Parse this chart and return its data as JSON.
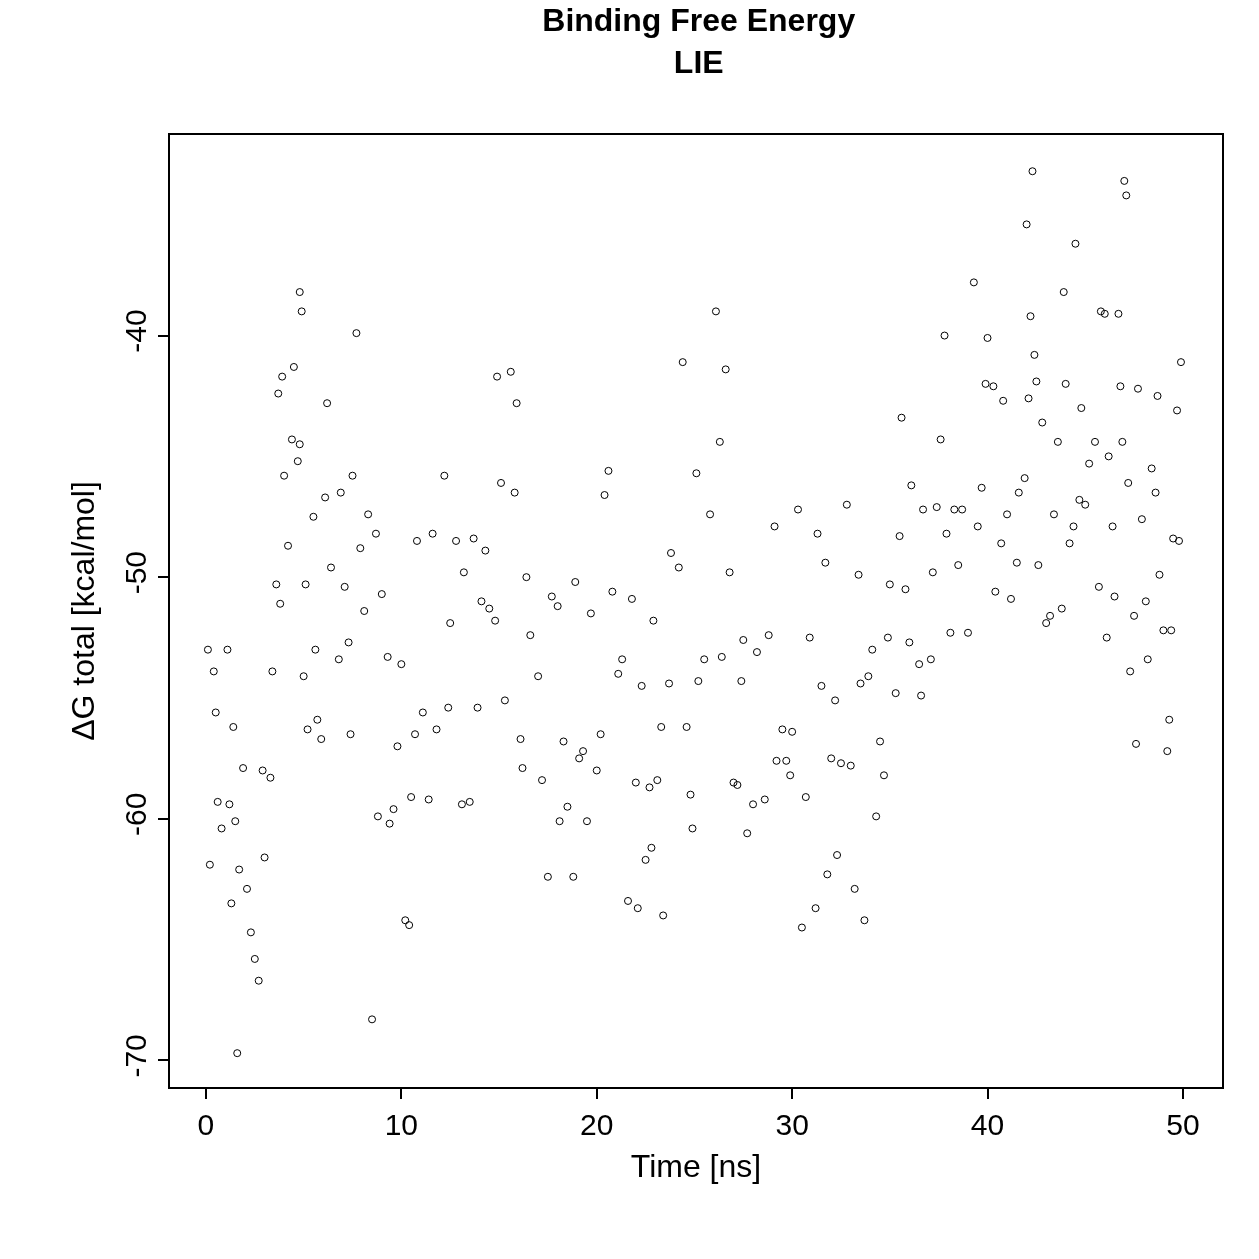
{
  "chart_data": {
    "type": "scatter",
    "title": "Binding Free Energy",
    "subtitle": "LIE",
    "xlabel": "Time [ns]",
    "ylabel": "ΔG total [kcal/mol]",
    "xlim": [
      -1.84,
      52.0
    ],
    "ylim": [
      -71.1,
      -31.7
    ],
    "xticks": [
      0,
      10,
      20,
      30,
      40,
      50
    ],
    "yticks": [
      -70,
      -60,
      -50,
      -40
    ],
    "grid": false,
    "legend": false,
    "marker": "circle",
    "series": [
      {
        "color": "#000000",
        "x": [
          0.1,
          0.2,
          0.4,
          0.5,
          0.6,
          0.8,
          1.1,
          1.2,
          1.3,
          1.4,
          1.5,
          1.6,
          1.7,
          1.9,
          2.1,
          2.3,
          2.5,
          2.7,
          2.9,
          3.0,
          3.3,
          3.4,
          3.6,
          3.7,
          3.8,
          3.9,
          4.0,
          4.2,
          4.4,
          4.5,
          4.7,
          4.8,
          4.8,
          4.9,
          5.0,
          5.1,
          5.2,
          5.5,
          5.6,
          5.7,
          5.9,
          6.1,
          6.2,
          6.4,
          6.8,
          6.9,
          7.1,
          7.3,
          7.4,
          7.5,
          7.7,
          7.9,
          8.1,
          8.3,
          8.5,
          8.7,
          8.8,
          9.0,
          9.3,
          9.4,
          9.6,
          9.8,
          10.0,
          10.2,
          10.4,
          10.5,
          10.7,
          10.8,
          11.1,
          11.4,
          11.6,
          11.8,
          12.2,
          12.4,
          12.5,
          12.8,
          13.1,
          13.2,
          13.5,
          13.7,
          13.9,
          14.1,
          14.3,
          14.5,
          14.8,
          14.9,
          15.1,
          15.3,
          15.6,
          15.8,
          15.9,
          16.1,
          16.2,
          16.4,
          16.6,
          17.0,
          17.2,
          17.5,
          17.7,
          18.0,
          18.1,
          18.3,
          18.5,
          18.8,
          18.9,
          19.1,
          19.3,
          19.5,
          19.7,
          20.0,
          20.2,
          20.4,
          20.6,
          20.8,
          21.1,
          21.3,
          21.6,
          21.8,
          22.0,
          22.1,
          22.3,
          22.5,
          22.7,
          22.8,
          22.9,
          23.1,
          23.3,
          23.4,
          23.7,
          23.8,
          24.2,
          24.4,
          24.6,
          24.8,
          24.9,
          25.1,
          25.2,
          25.5,
          25.8,
          26.1,
          26.3,
          26.4,
          26.6,
          26.8,
          27.0,
          27.2,
          27.4,
          27.5,
          27.7,
          28.0,
          28.2,
          28.6,
          28.8,
          29.1,
          29.2,
          29.5,
          29.7,
          29.9,
          30.0,
          30.3,
          30.5,
          30.7,
          30.9,
          31.2,
          31.3,
          31.5,
          31.7,
          31.8,
          32.0,
          32.2,
          32.3,
          32.5,
          32.8,
          33.0,
          33.2,
          33.4,
          33.5,
          33.7,
          33.9,
          34.1,
          34.3,
          34.5,
          34.7,
          34.9,
          35.0,
          35.3,
          35.5,
          35.6,
          35.8,
          36.0,
          36.1,
          36.5,
          36.6,
          36.7,
          37.1,
          37.2,
          37.4,
          37.6,
          37.8,
          37.9,
          38.1,
          38.3,
          38.5,
          38.7,
          39.0,
          39.3,
          39.5,
          39.7,
          39.9,
          40.0,
          40.3,
          40.4,
          40.7,
          40.8,
          41.0,
          41.2,
          41.5,
          41.6,
          41.9,
          42.0,
          42.1,
          42.2,
          42.3,
          42.4,
          42.5,
          42.6,
          42.8,
          43.0,
          43.2,
          43.4,
          43.6,
          43.8,
          43.9,
          44.0,
          44.2,
          44.4,
          44.5,
          44.7,
          44.8,
          45.0,
          45.2,
          45.5,
          45.7,
          45.8,
          46.0,
          46.1,
          46.2,
          46.4,
          46.5,
          46.7,
          46.8,
          46.9,
          47.0,
          47.1,
          47.2,
          47.3,
          47.5,
          47.6,
          47.7,
          47.9,
          48.1,
          48.2,
          48.4,
          48.6,
          48.7,
          48.8,
          49.0,
          49.2,
          49.3,
          49.4,
          49.5,
          49.7,
          49.8,
          49.9
        ],
        "values": [
          -53.0,
          -61.9,
          -53.9,
          -55.6,
          -59.3,
          -60.4,
          -53.0,
          -59.4,
          -63.5,
          -56.2,
          -60.1,
          -69.7,
          -62.1,
          -57.9,
          -62.9,
          -64.7,
          -65.8,
          -66.7,
          -58.0,
          -61.6,
          -58.3,
          -53.9,
          -50.3,
          -42.4,
          -51.1,
          -41.7,
          -45.8,
          -48.7,
          -44.3,
          -41.3,
          -45.2,
          -44.5,
          -38.2,
          -39.0,
          -54.1,
          -50.3,
          -56.3,
          -47.5,
          -53.0,
          -55.9,
          -56.7,
          -46.7,
          -42.8,
          -49.6,
          -53.4,
          -46.5,
          -50.4,
          -52.7,
          -56.5,
          -45.8,
          -39.9,
          -48.8,
          -51.4,
          -47.4,
          -68.3,
          -48.2,
          -59.9,
          -50.7,
          -53.3,
          -60.2,
          -59.6,
          -57.0,
          -53.6,
          -64.2,
          -64.4,
          -59.1,
          -56.5,
          -48.5,
          -55.6,
          -59.2,
          -48.2,
          -56.3,
          -45.8,
          -55.4,
          -51.9,
          -48.5,
          -59.4,
          -49.8,
          -59.3,
          -48.4,
          -55.4,
          -51.0,
          -48.9,
          -51.3,
          -51.8,
          -41.7,
          -46.1,
          -55.1,
          -41.5,
          -46.5,
          -42.8,
          -56.7,
          -57.9,
          -50.0,
          -52.4,
          -54.1,
          -58.4,
          -62.4,
          -50.8,
          -51.2,
          -60.1,
          -56.8,
          -59.5,
          -62.4,
          -50.2,
          -57.5,
          -57.2,
          -60.1,
          -51.5,
          -58.0,
          -56.5,
          -46.6,
          -45.6,
          -50.6,
          -54.0,
          -53.4,
          -63.4,
          -50.9,
          -58.5,
          -63.7,
          -54.5,
          -61.7,
          -58.7,
          -61.2,
          -51.8,
          -58.4,
          -56.2,
          -64.0,
          -54.4,
          -49.0,
          -49.6,
          -41.1,
          -56.2,
          -59.0,
          -60.4,
          -45.7,
          -54.3,
          -53.4,
          -47.4,
          -39.0,
          -44.4,
          -53.3,
          -41.4,
          -49.8,
          -58.5,
          -58.6,
          -54.3,
          -52.6,
          -60.6,
          -59.4,
          -53.1,
          -59.2,
          -52.4,
          -47.9,
          -57.6,
          -56.3,
          -57.6,
          -58.2,
          -56.4,
          -47.2,
          -64.5,
          -59.1,
          -52.5,
          -63.7,
          -48.2,
          -54.5,
          -49.4,
          -62.3,
          -57.5,
          -55.1,
          -61.5,
          -57.7,
          -47.0,
          -57.8,
          -62.9,
          -49.9,
          -54.4,
          -64.2,
          -54.1,
          -53.0,
          -59.9,
          -56.8,
          -58.2,
          -52.5,
          -50.3,
          -54.8,
          -48.3,
          -43.4,
          -50.5,
          -52.7,
          -46.2,
          -53.6,
          -54.9,
          -47.2,
          -53.4,
          -49.8,
          -47.1,
          -44.3,
          -40.0,
          -48.2,
          -52.3,
          -47.2,
          -49.5,
          -47.2,
          -52.3,
          -37.8,
          -47.9,
          -46.3,
          -42.0,
          -40.1,
          -42.1,
          -50.6,
          -48.6,
          -42.7,
          -47.4,
          -50.9,
          -49.4,
          -46.5,
          -45.9,
          -35.4,
          -42.6,
          -39.2,
          -33.2,
          -40.8,
          -41.9,
          -49.5,
          -43.6,
          -51.9,
          -51.6,
          -47.4,
          -44.4,
          -51.3,
          -38.2,
          -42.0,
          -48.6,
          -47.9,
          -36.2,
          -46.8,
          -43.0,
          -47.0,
          -45.3,
          -44.4,
          -50.4,
          -39.0,
          -39.1,
          -52.5,
          -45.0,
          -47.9,
          -50.8,
          -39.1,
          -42.1,
          -44.4,
          -33.6,
          -34.2,
          -46.1,
          -53.9,
          -51.6,
          -56.9,
          -42.2,
          -47.6,
          -51.0,
          -53.4,
          -45.5,
          -46.5,
          -42.5,
          -49.9,
          -52.2,
          -57.2,
          -55.9,
          -52.2,
          -48.4,
          -43.1,
          -48.5,
          -41.1
        ]
      }
    ]
  }
}
